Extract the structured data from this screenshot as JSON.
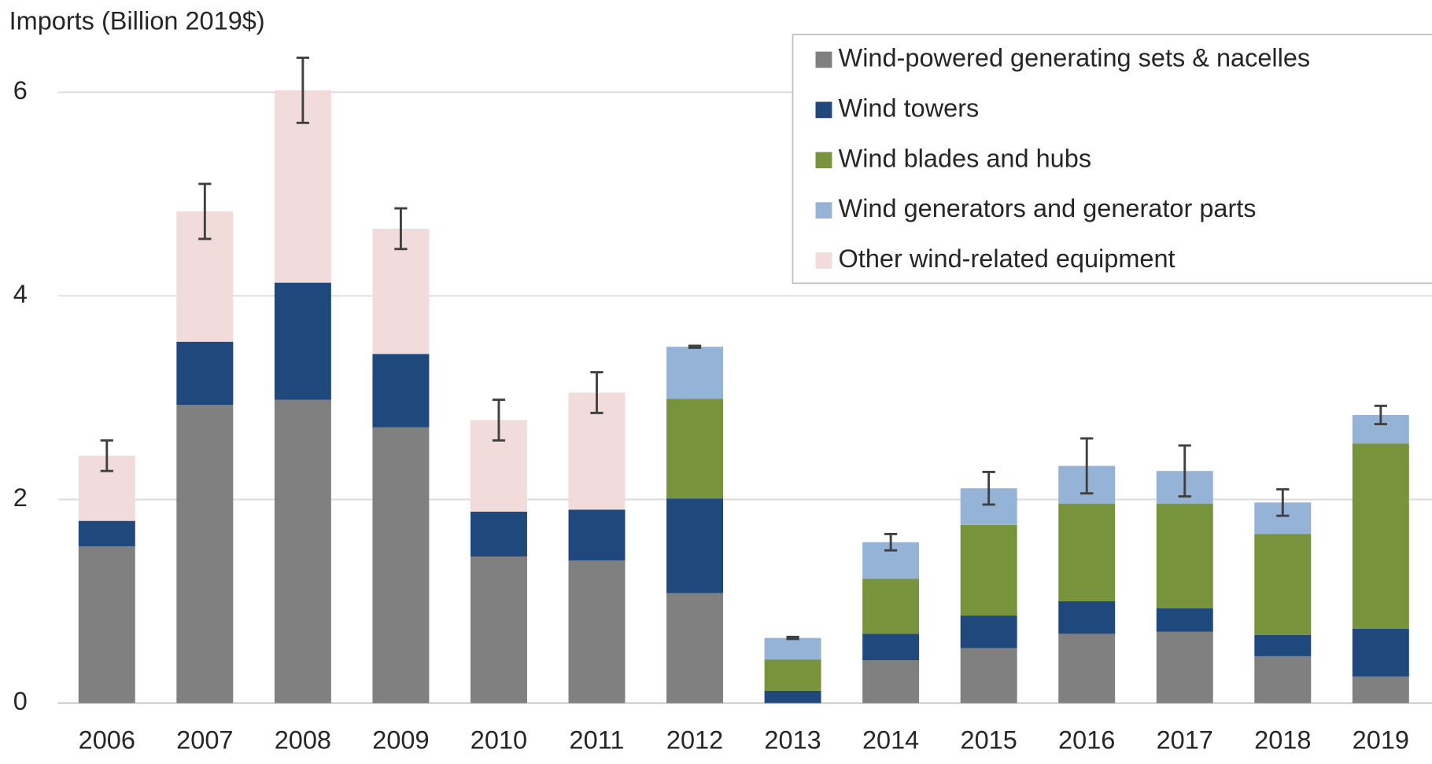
{
  "chart_data": {
    "type": "stacked_bar",
    "y_axis_label": "Imports (Billion 2019$)",
    "categories": [
      "2006",
      "2007",
      "2008",
      "2009",
      "2010",
      "2011",
      "2012",
      "2013",
      "2014",
      "2015",
      "2016",
      "2017",
      "2018",
      "2019"
    ],
    "series": [
      {
        "name": "Wind-powered generating sets & nacelles",
        "color": "#808080",
        "values": [
          1.54,
          2.93,
          2.98,
          2.71,
          1.44,
          1.4,
          1.08,
          0,
          0.42,
          0.54,
          0.68,
          0.7,
          0.46,
          0.26
        ]
      },
      {
        "name": "Wind towers",
        "color": "#1f497d",
        "values": [
          0.25,
          0.62,
          1.15,
          0.72,
          0.44,
          0.5,
          0.93,
          0.12,
          0.26,
          0.32,
          0.32,
          0.23,
          0.21,
          0.47
        ]
      },
      {
        "name": "Wind blades and hubs",
        "color": "#77933c",
        "values": [
          null,
          null,
          null,
          null,
          null,
          null,
          0.98,
          0.31,
          0.54,
          0.89,
          0.96,
          1.03,
          0.99,
          1.82
        ]
      },
      {
        "name": "Wind generators and generator parts",
        "color": "#95b3d7",
        "values": [
          null,
          null,
          null,
          null,
          null,
          null,
          0.51,
          0.21,
          0.36,
          0.36,
          0.37,
          0.32,
          0.31,
          0.28
        ]
      },
      {
        "name": "Other wind-related equipment",
        "color": "#f2dcdb",
        "values": [
          0.64,
          1.28,
          1.89,
          1.23,
          0.9,
          1.15,
          null,
          null,
          null,
          null,
          null,
          null,
          null,
          null
        ]
      }
    ],
    "errors": [
      0.15,
      0.27,
      0.32,
      0.2,
      0.2,
      0.2,
      0.01,
      0.01,
      0.08,
      0.16,
      0.27,
      0.25,
      0.13,
      0.09
    ],
    "ylim": [
      0,
      6.6
    ],
    "yticks": [
      0,
      2,
      4,
      6
    ],
    "grid": true,
    "legend": "top-right"
  }
}
